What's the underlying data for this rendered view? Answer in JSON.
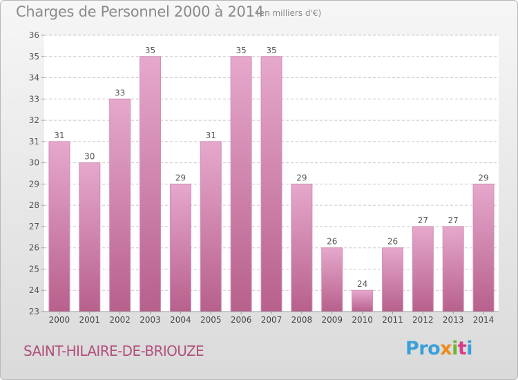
{
  "header": {
    "title": "Charges de Personnel 2000 à 2014",
    "subtitle": "(en milliers d'€)"
  },
  "footer": {
    "town": "SAINT-HILAIRE-DE-BRIOUZE",
    "logo": {
      "part1": "Pro",
      "part2": "x",
      "part3": "i",
      "part4": "t",
      "part5": "i"
    }
  },
  "colors": {
    "bar_top": "#e6a8cc",
    "bar_bottom": "#b7608c",
    "grid": "#c8c8c8",
    "town": "#b0507c"
  },
  "chart_data": {
    "type": "bar",
    "title": "Charges de Personnel 2000 à 2014",
    "subtitle": "(en milliers d'€)",
    "categories": [
      "2000",
      "2001",
      "2002",
      "2003",
      "2004",
      "2005",
      "2006",
      "2007",
      "2008",
      "2009",
      "2010",
      "2011",
      "2012",
      "2013",
      "2014"
    ],
    "values": [
      31,
      30,
      33,
      35,
      29,
      31,
      35,
      35,
      29,
      26,
      24,
      26,
      27,
      27,
      29
    ],
    "ylim": [
      23,
      36
    ],
    "yticks": [
      23,
      24,
      25,
      26,
      27,
      28,
      29,
      30,
      31,
      32,
      33,
      34,
      35,
      36
    ],
    "grid": true,
    "xlabel": "",
    "ylabel": ""
  }
}
